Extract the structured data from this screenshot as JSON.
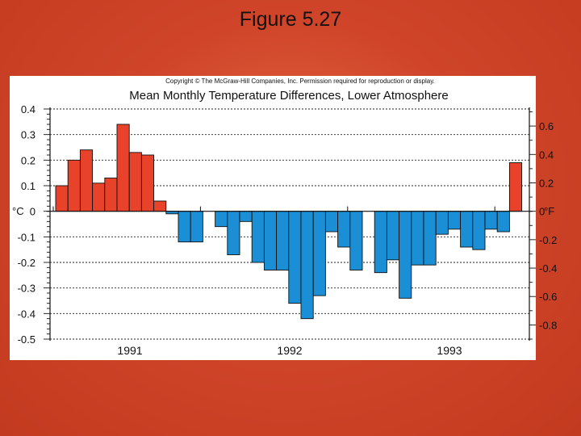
{
  "slide": {
    "title": "Figure 5.27"
  },
  "chart_data": {
    "type": "bar",
    "copyright": "Copyright © The McGraw-Hill Companies, Inc. Permission required for reproduction or display.",
    "title": "Mean Monthly Temperature Differences, Lower Atmosphere",
    "left_axis": {
      "unit_label": "°C",
      "ylim": [
        -0.5,
        0.4
      ],
      "ticks": [
        0.4,
        0.3,
        0.2,
        0.1,
        0,
        -0.1,
        -0.2,
        -0.3,
        -0.4,
        -0.5
      ],
      "tick_labels": [
        "0.4",
        "0.3",
        "0.2",
        "0.1",
        "0",
        "-0.1",
        "-0.2",
        "-0.3",
        "-0.4",
        "-0.5"
      ]
    },
    "right_axis": {
      "unit_label": "°F",
      "ticks": [
        0.6,
        0.4,
        0.2,
        0,
        -0.2,
        -0.4,
        -0.6,
        -0.8
      ],
      "tick_labels": [
        "0.6",
        "0.4",
        "0.2",
        "0",
        "-0.2",
        "-0.4",
        "-0.6",
        "-0.8"
      ]
    },
    "x_labels": [
      "1991",
      "1992",
      "1993"
    ],
    "positive_color": "#e8432a",
    "negative_color": "#1a8fd6",
    "months_per_year": 12,
    "series": [
      {
        "name": "temperature difference (°C)",
        "values": [
          0.1,
          0.2,
          0.24,
          0.11,
          0.13,
          0.34,
          0.23,
          0.22,
          0.04,
          -0.01,
          -0.12,
          -0.12,
          0,
          -0.06,
          -0.17,
          -0.04,
          -0.2,
          -0.23,
          -0.23,
          -0.36,
          -0.42,
          -0.33,
          -0.08,
          -0.14,
          -0.23,
          0,
          -0.24,
          -0.19,
          -0.34,
          -0.21,
          -0.21,
          -0.09,
          -0.07,
          -0.14,
          -0.15,
          -0.07,
          -0.08,
          0.19
        ]
      }
    ]
  }
}
